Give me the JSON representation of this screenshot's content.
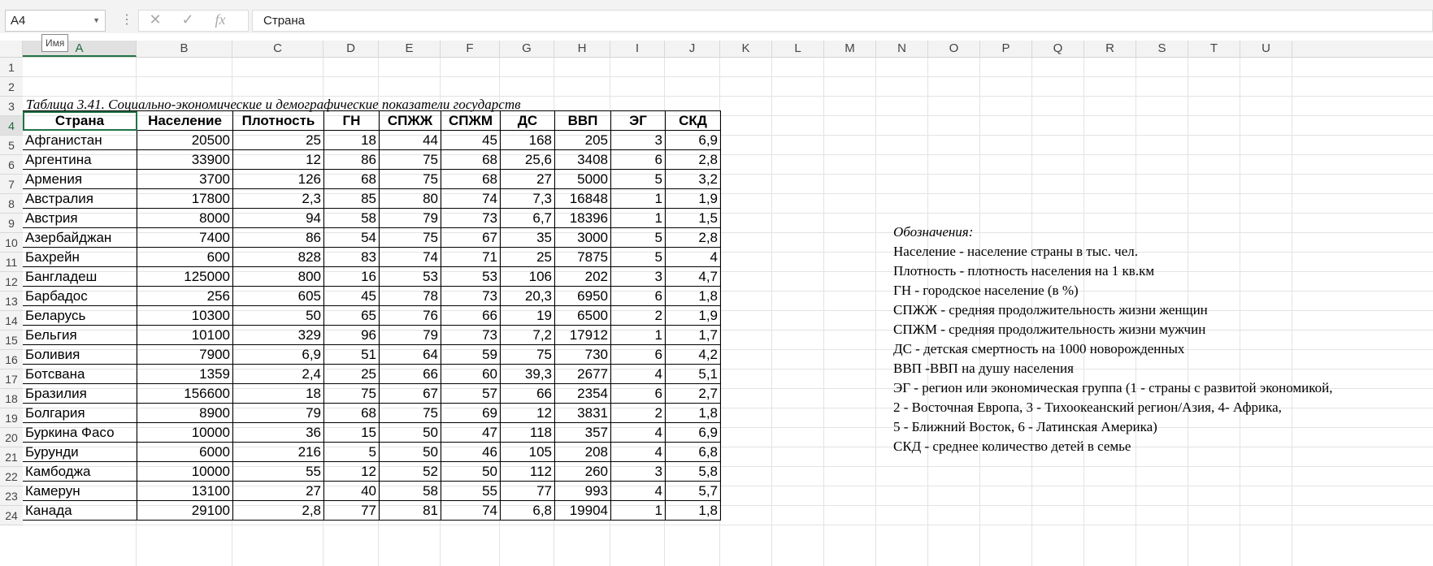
{
  "formula_bar": {
    "name_box": "A4",
    "cancel_glyph": "✕",
    "enter_glyph": "✓",
    "fx_label": "fx",
    "formula": "Страна",
    "name_tooltip": "Имя"
  },
  "columns": [
    "A",
    "B",
    "C",
    "D",
    "E",
    "F",
    "G",
    "H",
    "I",
    "J",
    "K",
    "L",
    "M",
    "N",
    "O",
    "P",
    "Q",
    "R",
    "S",
    "T",
    "U"
  ],
  "rows": [
    "1",
    "2",
    "3",
    "4",
    "5",
    "6",
    "7",
    "8",
    "9",
    "10",
    "11",
    "12",
    "13",
    "14",
    "15",
    "16",
    "17",
    "18",
    "19",
    "20",
    "21",
    "22",
    "23",
    "24"
  ],
  "sheet": {
    "title": "Таблица 3.41. Социально-экономические и демографические показатели государств",
    "headers": [
      "Страна",
      "Население",
      "Плотность",
      "ГН",
      "СПЖЖ",
      "СПЖМ",
      "ДС",
      "ВВП",
      "ЭГ",
      "СКД"
    ],
    "data": [
      [
        "Афганистан",
        "20500",
        "25",
        "18",
        "44",
        "45",
        "168",
        "205",
        "3",
        "6,9"
      ],
      [
        "Аргентина",
        "33900",
        "12",
        "86",
        "75",
        "68",
        "25,6",
        "3408",
        "6",
        "2,8"
      ],
      [
        "Армения",
        "3700",
        "126",
        "68",
        "75",
        "68",
        "27",
        "5000",
        "5",
        "3,2"
      ],
      [
        "Австралия",
        "17800",
        "2,3",
        "85",
        "80",
        "74",
        "7,3",
        "16848",
        "1",
        "1,9"
      ],
      [
        "Австрия",
        "8000",
        "94",
        "58",
        "79",
        "73",
        "6,7",
        "18396",
        "1",
        "1,5"
      ],
      [
        "Азербайджан",
        "7400",
        "86",
        "54",
        "75",
        "67",
        "35",
        "3000",
        "5",
        "2,8"
      ],
      [
        "Бахрейн",
        "600",
        "828",
        "83",
        "74",
        "71",
        "25",
        "7875",
        "5",
        "4"
      ],
      [
        "Бангладеш",
        "125000",
        "800",
        "16",
        "53",
        "53",
        "106",
        "202",
        "3",
        "4,7"
      ],
      [
        "Барбадос",
        "256",
        "605",
        "45",
        "78",
        "73",
        "20,3",
        "6950",
        "6",
        "1,8"
      ],
      [
        "Беларусь",
        "10300",
        "50",
        "65",
        "76",
        "66",
        "19",
        "6500",
        "2",
        "1,9"
      ],
      [
        "Бельгия",
        "10100",
        "329",
        "96",
        "79",
        "73",
        "7,2",
        "17912",
        "1",
        "1,7"
      ],
      [
        "Боливия",
        "7900",
        "6,9",
        "51",
        "64",
        "59",
        "75",
        "730",
        "6",
        "4,2"
      ],
      [
        "Ботсвана",
        "1359",
        "2,4",
        "25",
        "66",
        "60",
        "39,3",
        "2677",
        "4",
        "5,1"
      ],
      [
        "Бразилия",
        "156600",
        "18",
        "75",
        "67",
        "57",
        "66",
        "2354",
        "6",
        "2,7"
      ],
      [
        "Болгария",
        "8900",
        "79",
        "68",
        "75",
        "69",
        "12",
        "3831",
        "2",
        "1,8"
      ],
      [
        "Буркина Фасо",
        "10000",
        "36",
        "15",
        "50",
        "47",
        "118",
        "357",
        "4",
        "6,9"
      ],
      [
        "Бурунди",
        "6000",
        "216",
        "5",
        "50",
        "46",
        "105",
        "208",
        "4",
        "6,8"
      ],
      [
        "Камбоджа",
        "10000",
        "55",
        "12",
        "52",
        "50",
        "112",
        "260",
        "3",
        "5,8"
      ],
      [
        "Камерун",
        "13100",
        "27",
        "40",
        "58",
        "55",
        "77",
        "993",
        "4",
        "5,7"
      ],
      [
        "Канада",
        "29100",
        "2,8",
        "77",
        "81",
        "74",
        "6,8",
        "19904",
        "1",
        "1,8"
      ]
    ],
    "legend": [
      "Обозначения:",
      "Население - население страны в тыс. чел.",
      "Плотность - плотность населения на 1 кв.км",
      "ГН - городское население (в %)",
      "СПЖЖ - средняя продолжительность жизни женщин",
      "СПЖМ - средняя продолжительность жизни мужчин",
      "ДС - детская смертность на 1000 новорожденных",
      "ВВП -ВВП на душу населения",
      "ЭГ - регион или экономическая группа (1 - страны с развитой экономикой,",
      "2 - Восточная Европа, 3 - Тихоокеанский регион/Азия, 4- Африка,",
      "5 - Ближний Восток, 6 - Латинская Америка)",
      "СКД - среднее количество детей в семье"
    ]
  },
  "colors": {
    "accent": "#217346",
    "header_bg": "#f3f3f3",
    "grid": "#e3e3e3"
  }
}
